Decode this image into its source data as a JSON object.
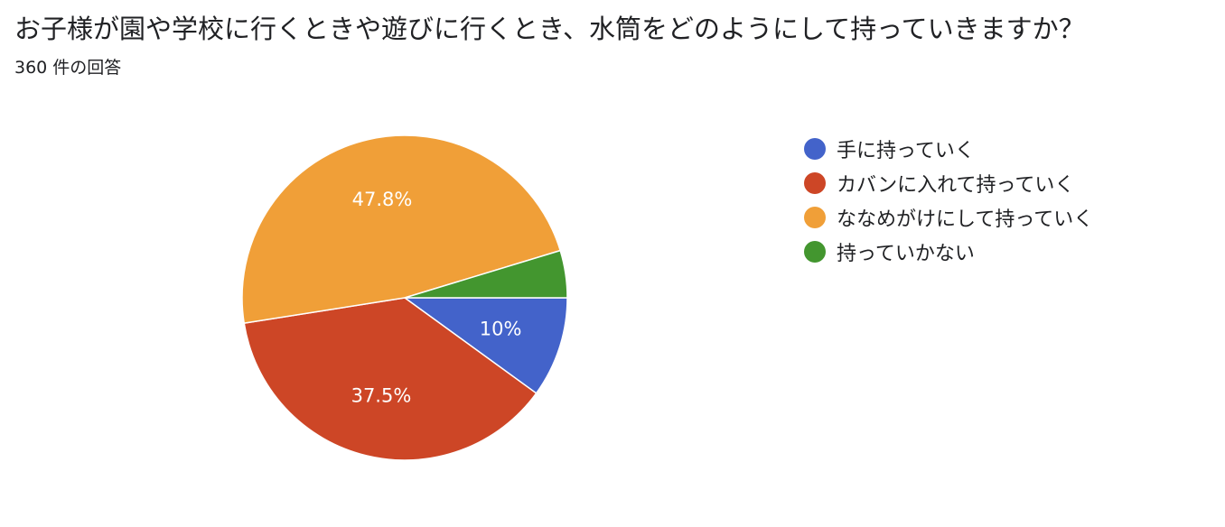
{
  "header": {
    "title": "お子様が園や学校に行くときや遊びに行くとき、水筒をどのようにして持っていきますか？",
    "response_count": "360 件の回答"
  },
  "chart_data": {
    "type": "pie",
    "start": "3 o'clock",
    "direction": "clockwise",
    "legend_position": "right",
    "slices": [
      {
        "name": "手に持っていく",
        "value": 10.0,
        "label": "10%",
        "color": "#4363CA"
      },
      {
        "name": "カバンに入れて持っていく",
        "value": 37.5,
        "label": "37.5%",
        "color": "#CD4626"
      },
      {
        "name": "ななめがけにして持っていく",
        "value": 47.8,
        "label": "47.8%",
        "color": "#F09F38"
      },
      {
        "name": "持っていかない",
        "value": 4.7,
        "label": "",
        "color": "#43962F"
      }
    ]
  }
}
